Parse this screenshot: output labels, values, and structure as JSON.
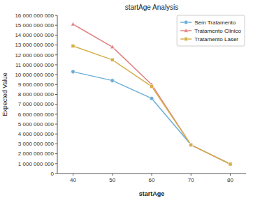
{
  "chart_data": {
    "type": "line",
    "title": "startAge Analysis",
    "xlabel": "startAge",
    "ylabel": "Expected Value",
    "x": [
      40,
      50,
      60,
      70,
      80
    ],
    "xlim": [
      36,
      84
    ],
    "xticks": [
      40,
      50,
      60,
      70,
      80
    ],
    "ylim": [
      0,
      16000000000
    ],
    "yticks": [
      0,
      {
        "value": 1000000000,
        "label": "1 000 000 000"
      },
      {
        "value": 2000000000,
        "label": "2 000 000 000"
      },
      {
        "value": 3000000000,
        "label": "3 000 000 000"
      },
      {
        "value": 4000000000,
        "label": "4 000 000 000"
      },
      {
        "value": 5000000000,
        "label": "5 000 000 000"
      },
      {
        "value": 6000000000,
        "label": "6 000 000 000"
      },
      {
        "value": 7000000000,
        "label": "7 000 000 000"
      },
      {
        "value": 8000000000,
        "label": "8 000 000 000"
      },
      {
        "value": 9000000000,
        "label": "9 000 000 000"
      },
      {
        "value": 10000000000,
        "label": "10 000 000 000"
      },
      {
        "value": 11000000000,
        "label": "11 000 000 000"
      },
      {
        "value": 12000000000,
        "label": "12 000 000 000"
      },
      {
        "value": 13000000000,
        "label": "13 000 000 000"
      },
      {
        "value": 14000000000,
        "label": "14 000 000 000"
      },
      {
        "value": 15000000000,
        "label": "15 000 000 000"
      },
      {
        "value": 16000000000,
        "label": "16 000 000 000"
      }
    ],
    "series": [
      {
        "name": "Sem Tratamento",
        "color": "#6aaed6",
        "marker": "circle",
        "values": [
          10300000000,
          9400000000,
          7600000000,
          2900000000,
          950000000
        ]
      },
      {
        "name": "Tratamento Clinico",
        "color": "#e08080",
        "marker": "triangle",
        "values": [
          15100000000,
          12800000000,
          9000000000,
          2900000000,
          950000000
        ]
      },
      {
        "name": "Tratamento Laser",
        "color": "#d4b04a",
        "marker": "square",
        "values": [
          12900000000,
          11500000000,
          8800000000,
          2900000000,
          950000000
        ]
      }
    ],
    "legend": "upper right",
    "grid": false
  }
}
